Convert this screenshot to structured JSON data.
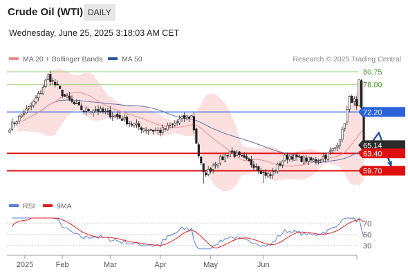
{
  "header": {
    "title": "Crude Oil (WTI)",
    "timeframe": "DAILY",
    "datetime": "Wednesday, June 25, 2025 3:18:03 AM CET"
  },
  "legend": {
    "items": [
      {
        "label": "MA 20 + Bollinger Bands",
        "color": "#f08a8a"
      },
      {
        "label": "MA 50",
        "color": "#2c5aa0"
      }
    ],
    "credit": "Research © 2025 Trading Central"
  },
  "rsi_legend": {
    "items": [
      {
        "label": "RSI",
        "color": "#5b7fd6"
      },
      {
        "label": "9MA",
        "color": "#e02020"
      }
    ]
  },
  "chart_data": [
    {
      "type": "candlestick",
      "price_range": [
        54.5,
        82.5
      ],
      "x_labels": [
        "2025",
        "Feb",
        "Mar",
        "Apr",
        "May",
        "Jun"
      ],
      "levels": [
        {
          "value": 80.75,
          "label": "80.75",
          "style": "green-line"
        },
        {
          "value": 78.0,
          "label": "78.00",
          "style": "green-line"
        },
        {
          "value": 72.2,
          "label": "72.20",
          "style": "blue-box"
        },
        {
          "value": 65.14,
          "label": "65.14",
          "style": "dark-box"
        },
        {
          "value": 63.4,
          "label": "63.40",
          "style": "red-box"
        },
        {
          "value": 59.7,
          "label": "59.70",
          "style": "red-box"
        }
      ],
      "forecast_arrow": [
        {
          "day": 0,
          "price": 65.0
        },
        {
          "day": 3,
          "price": 67.8
        },
        {
          "day": 7,
          "price": 60.5
        }
      ],
      "key_prices": [
        {
          "date": "2025-01-15",
          "price": 80.5
        },
        {
          "date": "2025-04-09",
          "price": 57.0
        },
        {
          "date": "2025-05-05",
          "price": 57.1
        },
        {
          "date": "2025-06-23",
          "price": 78.4
        },
        {
          "date": "2025-06-24",
          "price": 65.0
        }
      ]
    },
    {
      "type": "line",
      "name": "RSI",
      "y_ticks": [
        70,
        50,
        30
      ],
      "y_range": [
        20,
        85
      ]
    }
  ]
}
